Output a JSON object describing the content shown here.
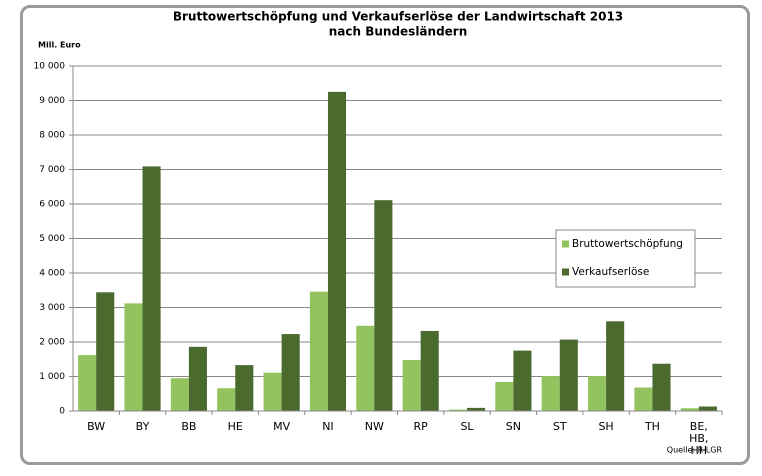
{
  "chart_data": {
    "type": "grouped_bar",
    "title": "Bruttowertschöpfung und Verkaufserlöse der Landwirtschaft 2013",
    "subtitle": "nach Bundesländern",
    "y_label": "Mill. Euro",
    "source": "Quelle:  R-LGR",
    "categories": [
      "BW",
      "BY",
      "BB",
      "HE",
      "MV",
      "NI",
      "NW",
      "RP",
      "SL",
      "SN",
      "ST",
      "SH",
      "TH",
      "BE, HB, HH"
    ],
    "series": [
      {
        "name": "Bruttowertschöpfung",
        "color": "#92c35f",
        "values": [
          1620,
          3120,
          950,
          660,
          1110,
          3460,
          2470,
          1480,
          40,
          840,
          1010,
          1010,
          680,
          80
        ]
      },
      {
        "name": "Verkaufserlöse",
        "color": "#4b6a2e",
        "values": [
          3440,
          7090,
          1860,
          1330,
          2230,
          9250,
          6110,
          2320,
          90,
          1750,
          2070,
          2600,
          1370,
          130
        ]
      }
    ],
    "ylim": [
      0,
      10000
    ],
    "yticks": [
      0,
      {
        "value": 1000,
        "label": "1 000"
      },
      {
        "value": 2000,
        "label": "2 000"
      },
      {
        "value": 3000,
        "label": "3 000"
      },
      {
        "value": 4000,
        "label": "4 000"
      },
      {
        "value": 5000,
        "label": "5 000"
      },
      {
        "value": 6000,
        "label": "6 000"
      },
      {
        "value": 7000,
        "label": "7 000"
      },
      {
        "value": 8000,
        "label": "8 000"
      },
      {
        "value": 9000,
        "label": "9 000"
      },
      {
        "value": 10000,
        "label": "10 000"
      }
    ],
    "grid": true,
    "legend": "right"
  }
}
